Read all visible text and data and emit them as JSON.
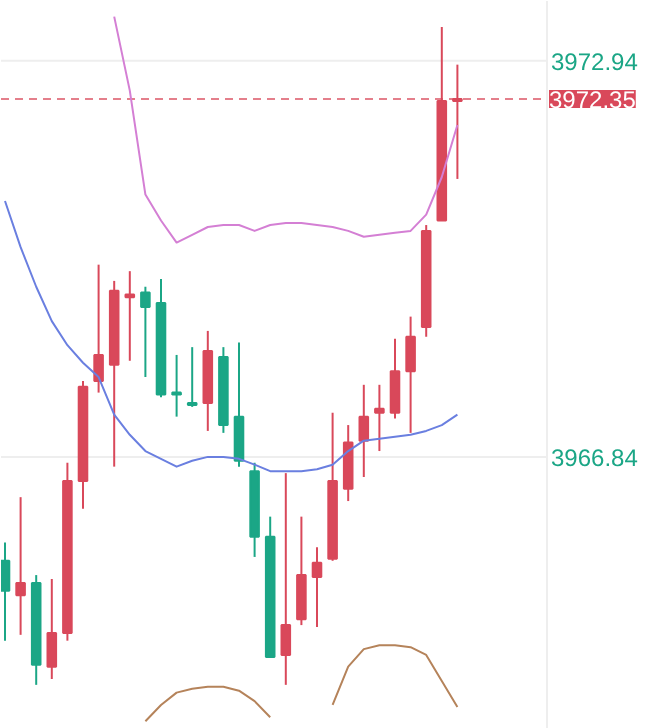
{
  "chart_data": {
    "type": "candlestick",
    "categories": [
      null,
      null,
      null,
      null,
      null,
      null,
      null,
      null,
      null,
      null,
      null,
      null,
      null,
      null,
      null,
      null,
      null,
      null,
      null,
      null,
      null,
      null,
      null,
      null,
      null,
      null,
      null,
      null,
      null,
      null
    ],
    "ohlc": [
      [
        3965.24,
        3965.52,
        3964.01,
        3964.78
      ],
      [
        3964.71,
        3966.22,
        3964.1,
        3964.9
      ],
      [
        3964.9,
        3965.02,
        3963.33,
        3963.64
      ],
      [
        3963.61,
        3964.96,
        3963.42,
        3964.13
      ],
      [
        3964.13,
        3966.75,
        3964.01,
        3966.47
      ],
      [
        3966.47,
        3968.01,
        3966.04,
        3967.92
      ],
      [
        3968.01,
        3969.8,
        3967.83,
        3968.41
      ],
      [
        3968.26,
        3969.55,
        3966.69,
        3969.4
      ],
      [
        3969.3,
        3969.7,
        3968.32,
        3969.34
      ],
      [
        3969.37,
        3969.46,
        3968.07,
        3969.15
      ],
      [
        3969.21,
        3969.58,
        3967.76,
        3967.8
      ],
      [
        3967.83,
        3968.41,
        3967.46,
        3967.8
      ],
      [
        3967.67,
        3968.53,
        3967.61,
        3967.64
      ],
      [
        3967.67,
        3968.78,
        3967.24,
        3968.47
      ],
      [
        3968.38,
        3968.53,
        3967.21,
        3967.33
      ],
      [
        3967.46,
        3968.6,
        3966.69,
        3966.78
      ],
      [
        3966.62,
        3966.75,
        3965.3,
        3965.61
      ],
      [
        3965.61,
        3965.92,
        3963.76,
        3963.76
      ],
      [
        3963.79,
        3966.59,
        3963.33,
        3964.25
      ],
      [
        3964.34,
        3965.92,
        3964.25,
        3965.02
      ],
      [
        3964.99,
        3965.45,
        3964.22,
        3965.21
      ],
      [
        3965.27,
        3967.52,
        3965.24,
        3966.47
      ],
      [
        3966.35,
        3967.33,
        3966.16,
        3967.06
      ],
      [
        3967.09,
        3967.95,
        3966.53,
        3967.46
      ],
      [
        3967.52,
        3967.95,
        3966.93,
        3967.58
      ],
      [
        3967.52,
        3968.66,
        3967.43,
        3968.16
      ],
      [
        3968.16,
        3969.0,
        3967.21,
        3968.69
      ],
      [
        3968.84,
        3970.41,
        3968.69,
        3970.32
      ],
      [
        3970.48,
        3973.46,
        3970.48,
        3972.32
      ],
      [
        3972.32,
        3972.88,
        3971.12,
        3972.35
      ]
    ],
    "colors": [
      "#1ba686",
      "#d9485a",
      "#1ba686",
      "#d9485a",
      "#d9485a",
      "#d9485a",
      "#d9485a",
      "#d9485a",
      "#d9485a",
      "#1ba686",
      "#1ba686",
      "#1ba686",
      "#1ba686",
      "#d9485a",
      "#1ba686",
      "#1ba686",
      "#1ba686",
      "#1ba686",
      "#d9485a",
      "#d9485a",
      "#d9485a",
      "#d9485a",
      "#d9485a",
      "#d9485a",
      "#d9485a",
      "#d9485a",
      "#d9485a",
      "#d9485a",
      "#d9485a",
      "#d9485a"
    ],
    "series": [
      {
        "type": "line",
        "color": "#d47fd4",
        "values": [
          null,
          null,
          null,
          null,
          null,
          null,
          null,
          3973.62,
          3972.48,
          3970.88,
          3970.48,
          3970.14,
          3970.26,
          3970.38,
          3970.41,
          3970.41,
          3970.32,
          3970.41,
          3970.44,
          3970.44,
          3970.41,
          3970.38,
          3970.32,
          3970.23,
          3970.26,
          3970.29,
          3970.32,
          3970.57,
          3971.15,
          3971.95
        ]
      },
      {
        "type": "line",
        "color": "#6a7fe0",
        "values": [
          3970.78,
          3970.07,
          3969.46,
          3968.93,
          3968.56,
          3968.29,
          3968.07,
          3967.49,
          3967.18,
          3966.93,
          3966.81,
          3966.69,
          3966.78,
          3966.84,
          3966.84,
          3966.81,
          3966.72,
          3966.62,
          3966.62,
          3966.62,
          3966.65,
          3966.72,
          3966.93,
          3967.09,
          3967.12,
          3967.15,
          3967.18,
          3967.24,
          3967.33,
          3967.49
        ]
      },
      {
        "type": "line",
        "color": "#b5835a",
        "values": [
          null,
          null,
          null,
          null,
          null,
          null,
          null,
          null,
          null,
          3962.77,
          3963.02,
          3963.21,
          3963.27,
          3963.3,
          3963.3,
          3963.24,
          3963.08,
          3962.83,
          null,
          null,
          null,
          3963.02,
          3963.61,
          3963.88,
          3963.94,
          3963.94,
          3963.91,
          3963.79,
          3963.39,
          3962.99
        ]
      }
    ],
    "ylim": [
      3962.65,
      3973.86
    ],
    "yticks": [
      3972.94,
      3966.84
    ],
    "grid": "y",
    "tick_labels": "y",
    "ref_lines": [
      {
        "axis": "y",
        "value": 3972.35,
        "label": "3972.35",
        "color": "#d9485a",
        "line_style": "dashed"
      }
    ]
  }
}
